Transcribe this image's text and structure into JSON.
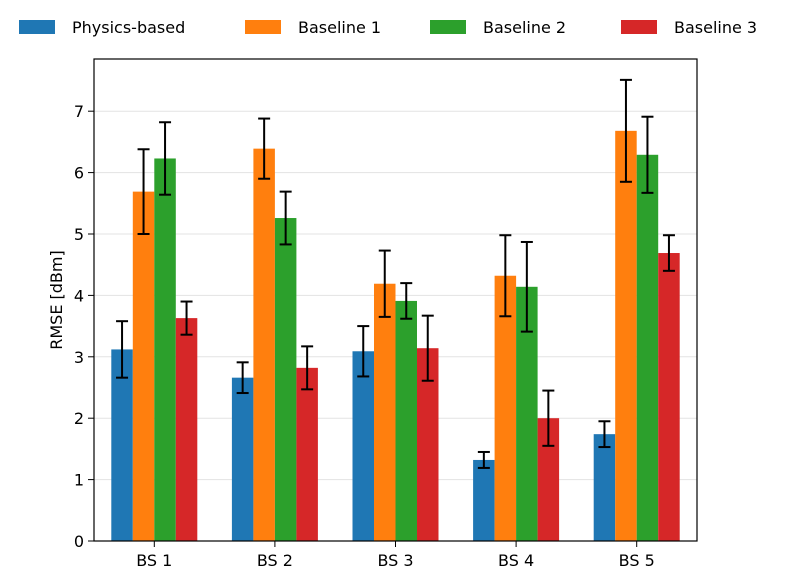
{
  "chart_data": {
    "type": "bar",
    "title": "",
    "xlabel": "",
    "ylabel": "RMSE [dBm]",
    "ylim": [
      0,
      7.85
    ],
    "yticks": [
      0,
      1,
      2,
      3,
      4,
      5,
      6,
      7
    ],
    "grid": "horizontal",
    "legend_position": "top",
    "categories": [
      "BS 1",
      "BS 2",
      "BS 3",
      "BS 4",
      "BS 5"
    ],
    "series": [
      {
        "name": "Physics-based",
        "color": "#1f77b4",
        "values": [
          3.12,
          2.66,
          3.09,
          1.32,
          1.74
        ],
        "errors": [
          0.46,
          0.25,
          0.41,
          0.13,
          0.21
        ]
      },
      {
        "name": "Baseline 1",
        "color": "#ff7f0e",
        "values": [
          5.69,
          6.39,
          4.19,
          4.32,
          6.68
        ],
        "errors": [
          0.69,
          0.49,
          0.54,
          0.66,
          0.83
        ]
      },
      {
        "name": "Baseline 2",
        "color": "#2ca02c",
        "values": [
          6.23,
          5.26,
          3.91,
          4.14,
          6.29
        ],
        "errors": [
          0.59,
          0.43,
          0.29,
          0.73,
          0.62
        ]
      },
      {
        "name": "Baseline 3",
        "color": "#d62728",
        "values": [
          3.63,
          2.82,
          3.14,
          2.0,
          4.69
        ],
        "errors": [
          0.27,
          0.35,
          0.53,
          0.45,
          0.29
        ]
      }
    ]
  }
}
